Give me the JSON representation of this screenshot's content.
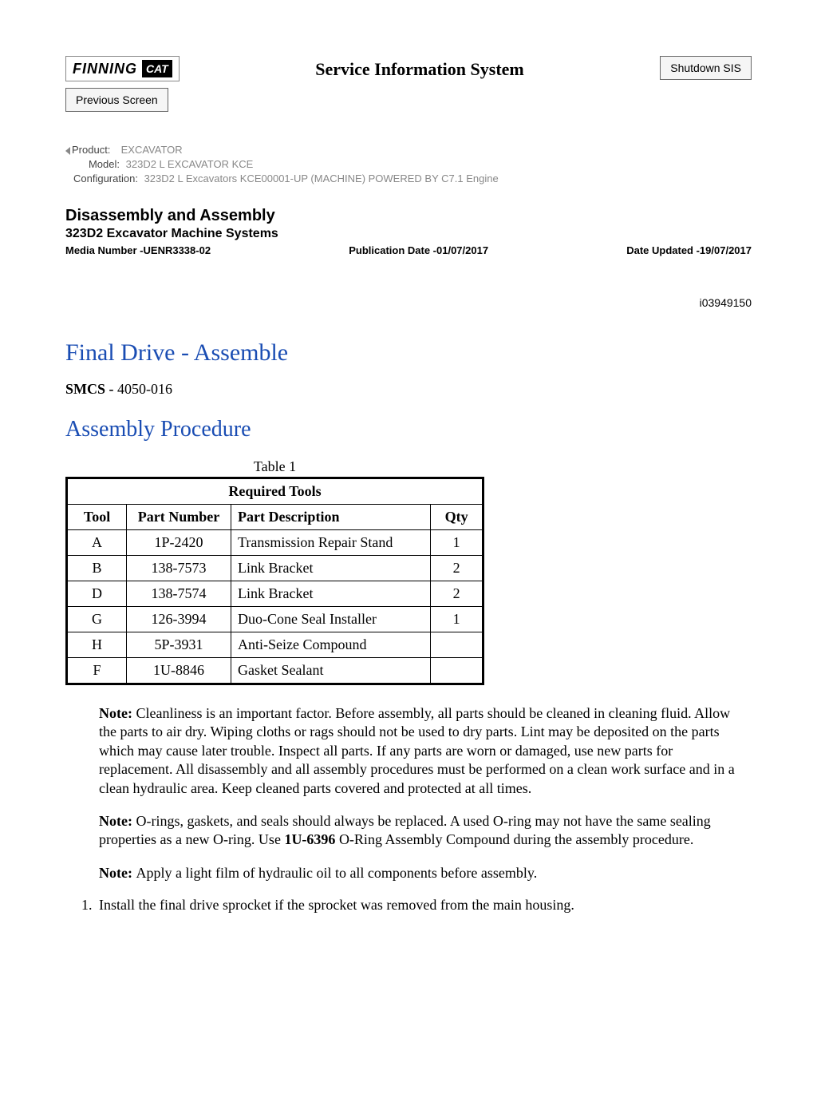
{
  "header": {
    "logo_text": "FINNING",
    "logo_badge": "CAT",
    "sis_title": "Service Information System",
    "shutdown_btn": "Shutdown SIS",
    "prev_btn": "Previous Screen"
  },
  "meta": {
    "product_label": "Product:",
    "product_value": "EXCAVATOR",
    "model_label": "Model:",
    "model_value": "323D2 L EXCAVATOR KCE",
    "config_label": "Configuration:",
    "config_value": "323D2 L Excavators KCE00001-UP (MACHINE) POWERED BY C7.1 Engine"
  },
  "section": {
    "heading": "Disassembly and Assembly",
    "subheading": "323D2 Excavator Machine Systems",
    "media": "Media Number -UENR3338-02",
    "pubdate": "Publication Date -01/07/2017",
    "updated": "Date Updated -19/07/2017"
  },
  "doc_id": "i03949150",
  "title": "Final Drive - Assemble",
  "smcs_label": "SMCS - ",
  "smcs_value": "4050-016",
  "subtitle": "Assembly Procedure",
  "table": {
    "caption": "Table 1",
    "header_span": "Required Tools",
    "columns": [
      "Tool",
      "Part Number",
      "Part Description",
      "Qty"
    ],
    "rows": [
      [
        "A",
        "1P-2420",
        "Transmission Repair Stand",
        "1"
      ],
      [
        "B",
        "138-7573",
        "Link Bracket",
        "2"
      ],
      [
        "D",
        "138-7574",
        "Link Bracket",
        "2"
      ],
      [
        "G",
        "126-3994",
        "Duo-Cone Seal Installer",
        "1"
      ],
      [
        "H",
        "5P-3931",
        "Anti-Seize Compound",
        ""
      ],
      [
        "F",
        "1U-8846",
        "Gasket Sealant",
        ""
      ]
    ]
  },
  "notes": {
    "note_label": "Note: ",
    "note1": "Cleanliness is an important factor. Before assembly, all parts should be cleaned in cleaning fluid. Allow the parts to air dry. Wiping cloths or rags should not be used to dry parts. Lint may be deposited on the parts which may cause later trouble. Inspect all parts. If any parts are worn or damaged, use new parts for replacement. All disassembly and all assembly procedures must be performed on a clean work surface and in a clean hydraulic area. Keep cleaned parts covered and protected at all times.",
    "note2a": "O-rings, gaskets, and seals should always be replaced. A used O-ring may not have the same sealing properties as a new O-ring. Use ",
    "note2_bold": "1U-6396",
    "note2b": " O-Ring Assembly Compound during the assembly procedure.",
    "note3": "Apply a light film of hydraulic oil to all components before assembly."
  },
  "step1_num": "1.",
  "step1_text": "Install the final drive sprocket if the sprocket was removed from the main housing."
}
